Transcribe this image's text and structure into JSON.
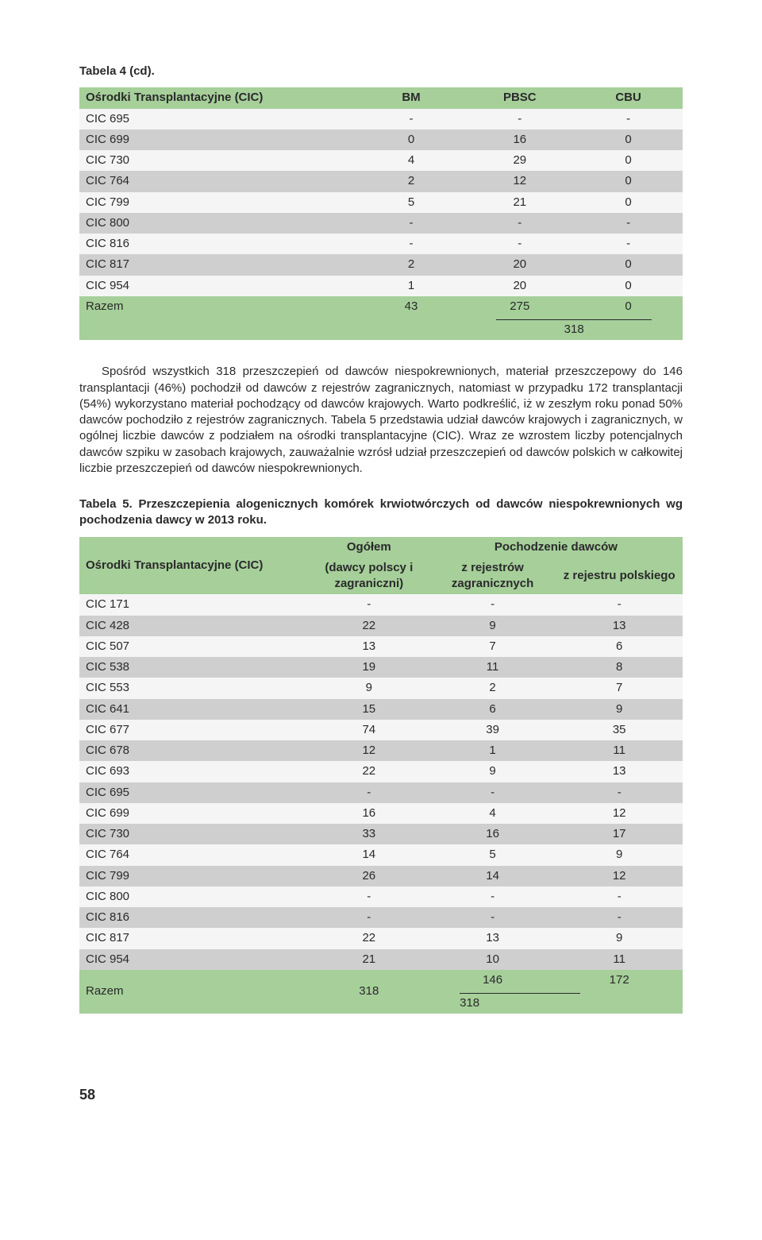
{
  "table4": {
    "caption": "Tabela 4 (cd).",
    "columns": [
      "Ośrodki Transplantacyjne (CIC)",
      "BM",
      "PBSC",
      "CBU"
    ],
    "rows": [
      {
        "cic": "CIC 695",
        "bm": "-",
        "pbsc": "-",
        "cbu": "-",
        "shade": "light"
      },
      {
        "cic": "CIC 699",
        "bm": "0",
        "pbsc": "16",
        "cbu": "0",
        "shade": "grey"
      },
      {
        "cic": "CIC 730",
        "bm": "4",
        "pbsc": "29",
        "cbu": "0",
        "shade": "light"
      },
      {
        "cic": "CIC 764",
        "bm": "2",
        "pbsc": "12",
        "cbu": "0",
        "shade": "grey"
      },
      {
        "cic": "CIC 799",
        "bm": "5",
        "pbsc": "21",
        "cbu": "0",
        "shade": "light"
      },
      {
        "cic": "CIC 800",
        "bm": "-",
        "pbsc": "-",
        "cbu": "-",
        "shade": "grey"
      },
      {
        "cic": "CIC 816",
        "bm": "-",
        "pbsc": "-",
        "cbu": "-",
        "shade": "light"
      },
      {
        "cic": "CIC 817",
        "bm": "2",
        "pbsc": "20",
        "cbu": "0",
        "shade": "grey"
      },
      {
        "cic": "CIC 954",
        "bm": "1",
        "pbsc": "20",
        "cbu": "0",
        "shade": "light"
      }
    ],
    "total_label": "Razem",
    "total_bm": "43",
    "total_pbsc": "275",
    "total_cbu": "0",
    "sub_total": "318"
  },
  "paragraph": "Spośród wszystkich 318 przeszczepień od dawców niespokrewnionych, materiał przeszczepowy do 146 transplantacji (46%) pochodził od dawców z rejestrów zagranicznych, natomiast w przypadku 172 transplantacji (54%) wykorzystano materiał pochodzący od dawców krajowych. Warto podkreślić, iż w zeszłym roku ponad 50% dawców pochodziło z rejestrów zagranicznych. Tabela 5 przedstawia udział dawców krajowych i zagranicznych, w ogólnej liczbie dawców z podziałem na ośrodki transplantacyjne (CIC). Wraz ze wzrostem liczby potencjalnych dawców szpiku w zasobach krajowych, zauważalnie wzrósł udział przeszczepień od dawców polskich w całkowitej liczbie przeszczepień od dawców niespokrewnionych.",
  "table5": {
    "caption": "Tabela 5. Przeszczepienia alogenicznych komórek krwiotwórczych od dawców niespokrewnionych wg pochodzenia dawcy w 2013 roku.",
    "h_cic": "Ośrodki Transplantacyjne (CIC)",
    "h_total": "Ogółem",
    "h_total_sub": "(dawcy polscy i zagraniczni)",
    "h_origin": "Pochodzenie dawców",
    "h_foreign": "z rejestrów zagranicznych",
    "h_polish": "z rejestru polskiego",
    "rows": [
      {
        "cic": "CIC 171",
        "t": "-",
        "f": "-",
        "p": "-",
        "shade": "light"
      },
      {
        "cic": "CIC 428",
        "t": "22",
        "f": "9",
        "p": "13",
        "shade": "grey"
      },
      {
        "cic": "CIC 507",
        "t": "13",
        "f": "7",
        "p": "6",
        "shade": "light"
      },
      {
        "cic": "CIC 538",
        "t": "19",
        "f": "11",
        "p": "8",
        "shade": "grey"
      },
      {
        "cic": "CIC 553",
        "t": "9",
        "f": "2",
        "p": "7",
        "shade": "light"
      },
      {
        "cic": "CIC 641",
        "t": "15",
        "f": "6",
        "p": "9",
        "shade": "grey"
      },
      {
        "cic": "CIC 677",
        "t": "74",
        "f": "39",
        "p": "35",
        "shade": "light"
      },
      {
        "cic": "CIC 678",
        "t": "12",
        "f": "1",
        "p": "11",
        "shade": "grey"
      },
      {
        "cic": "CIC 693",
        "t": "22",
        "f": "9",
        "p": "13",
        "shade": "light"
      },
      {
        "cic": "CIC 695",
        "t": "-",
        "f": "-",
        "p": "-",
        "shade": "grey"
      },
      {
        "cic": "CIC 699",
        "t": "16",
        "f": "4",
        "p": "12",
        "shade": "light"
      },
      {
        "cic": "CIC 730",
        "t": "33",
        "f": "16",
        "p": "17",
        "shade": "grey"
      },
      {
        "cic": "CIC 764",
        "t": "14",
        "f": "5",
        "p": "9",
        "shade": "light"
      },
      {
        "cic": "CIC 799",
        "t": "26",
        "f": "14",
        "p": "12",
        "shade": "grey"
      },
      {
        "cic": "CIC 800",
        "t": "-",
        "f": "-",
        "p": "-",
        "shade": "light"
      },
      {
        "cic": "CIC 816",
        "t": "-",
        "f": "-",
        "p": "-",
        "shade": "grey"
      },
      {
        "cic": "CIC 817",
        "t": "22",
        "f": "13",
        "p": "9",
        "shade": "light"
      },
      {
        "cic": "CIC 954",
        "t": "21",
        "f": "10",
        "p": "11",
        "shade": "grey"
      }
    ],
    "total_label": "Razem",
    "total_t": "318",
    "total_f": "146",
    "total_p": "172",
    "total_sub": "318"
  },
  "page_number": "58",
  "colors": {
    "green": "#a6cf9a",
    "grey": "#cfcfcf",
    "light": "#f5f5f5",
    "text": "#2a2a2a"
  }
}
